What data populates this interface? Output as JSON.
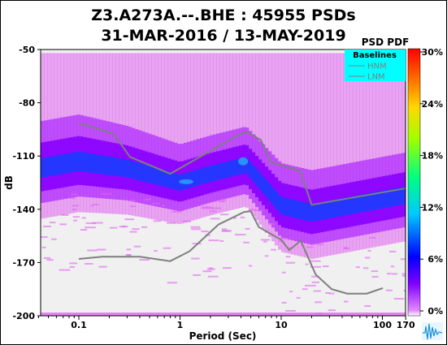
{
  "header": {
    "title_line1": "Z3.A273A.--.BHE : 45955 PSDs",
    "title_line2": "31-MAR-2016 / 13-MAY-2019"
  },
  "chart_data": {
    "type": "heatmap",
    "title": "Z3.A273A.--.BHE : 45955 PSDs",
    "subtitle": "31-MAR-2016 / 13-MAY-2019",
    "xlabel": "Period (Sec)",
    "ylabel": "dB",
    "x_scale": "log",
    "xlim": [
      0.04,
      170
    ],
    "ylim": [
      -200,
      -50
    ],
    "x_ticks": [
      0.1,
      1,
      10,
      100,
      170
    ],
    "x_tick_labels": [
      "0.1",
      "1",
      "10",
      "100",
      "170"
    ],
    "y_ticks": [
      -50,
      -80,
      -110,
      -140,
      -170,
      -200
    ],
    "y_tick_labels": [
      "-50",
      "-80",
      "-110",
      "-140",
      "-170",
      "-200"
    ],
    "colorbar": {
      "label": "PSD PDF",
      "ticks": [
        "0%",
        "6%",
        "12%",
        "18%",
        "24%",
        "30%"
      ],
      "range": [
        0,
        30
      ]
    },
    "legend": {
      "title": "Baselines",
      "entries": [
        "HNM",
        "LNM"
      ],
      "placement": "top-right",
      "background": "#00ffff"
    },
    "series": [
      {
        "name": "HNM",
        "x": [
          0.1,
          0.22,
          0.32,
          0.8,
          3.8,
          4.6,
          6.3,
          7.9,
          15.4,
          20,
          354
        ],
        "y": [
          -91.5,
          -97.4,
          -110.5,
          -120,
          -98,
          -96.5,
          -101,
          -113.5,
          -118.5,
          -137.5,
          -125
        ]
      },
      {
        "name": "LNM",
        "x": [
          0.1,
          0.17,
          0.4,
          0.8,
          1.24,
          2.4,
          4.3,
          5,
          6,
          10,
          12,
          15.6,
          21.9,
          31.6,
          45,
          70,
          101
        ],
        "y": [
          -168,
          -166.7,
          -166.7,
          -169.2,
          -163.7,
          -148.6,
          -141.5,
          -141.1,
          -150,
          -157.2,
          -163,
          -157.7,
          -176.7,
          -185,
          -187.5,
          -187.5,
          -184.4
        ]
      }
    ],
    "pdf_description": [
      {
        "x": 0.04,
        "mode_db": -117,
        "spread_db": 11
      },
      {
        "x": 0.1,
        "mode_db": -113,
        "spread_db": 11
      },
      {
        "x": 0.3,
        "mode_db": -117,
        "spread_db": 10
      },
      {
        "x": 1,
        "mode_db": -125,
        "spread_db": 9
      },
      {
        "x": 2,
        "mode_db": -120,
        "spread_db": 9
      },
      {
        "x": 4.5,
        "mode_db": -115,
        "spread_db": 9
      },
      {
        "x": 10,
        "mode_db": -138,
        "spread_db": 10
      },
      {
        "x": 20,
        "mode_db": -142,
        "spread_db": 10
      },
      {
        "x": 170,
        "mode_db": -132,
        "spread_db": 10
      }
    ],
    "colors": {
      "hnm_lnm_line": "#7f7f7f",
      "plot_background": "#f0f0f0",
      "low_density": "#e066f0",
      "mid_density": "#8800ff",
      "high_density": "#1a3cff"
    }
  }
}
